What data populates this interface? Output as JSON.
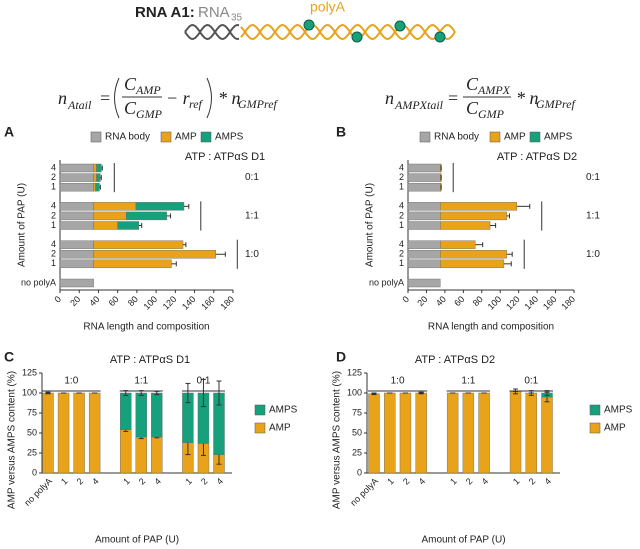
{
  "header": {
    "title": "RNA A1:",
    "rna": "RNA",
    "rna_sub": "35",
    "polya": "polyA"
  },
  "equations": [
    {
      "lhs": "n",
      "lhs_sub": "Atail",
      "eq": "=",
      "num": "C",
      "num_sub": "AMP",
      "den": "C",
      "den_sub": "GMP",
      "minus": "− r",
      "minus_sub": "ref",
      "mult": "* n",
      "mult_sub": "GMPref"
    },
    {
      "lhs": "n",
      "lhs_sub": "AMPXtail",
      "eq": "=",
      "num": "C",
      "num_sub": "AMPX",
      "den": "C",
      "den_sub": "GMP",
      "mult": "* n",
      "mult_sub": "GMPref"
    }
  ],
  "chart_data": [
    {
      "type": "barh",
      "panel": "A",
      "annotation": "ATP : ATPαS D1",
      "xlabel": "RNA length and composition",
      "ylabel": "Amount of PAP (U)",
      "categories": [
        "4",
        "2",
        "1",
        null,
        "4",
        "2",
        "1",
        null,
        "4",
        "2",
        "1",
        null,
        "no polyA"
      ],
      "groups": [
        "0:1",
        "1:1",
        "1:0"
      ],
      "series": [
        {
          "name": "RNA body",
          "color": "#a6a6a6",
          "values": [
            35,
            35,
            35,
            null,
            35,
            35,
            35,
            null,
            35,
            35,
            35,
            null,
            35
          ]
        },
        {
          "name": "AMP",
          "color": "#e8a31b",
          "values": [
            3,
            3,
            2,
            null,
            44,
            34,
            25,
            null,
            93,
            127,
            81,
            null,
            null
          ]
        },
        {
          "name": "AMPS",
          "color": "#17a07c",
          "values": [
            5,
            4,
            4,
            null,
            50,
            42,
            22,
            null,
            null,
            null,
            null,
            null,
            null
          ]
        }
      ],
      "errors": [
        1,
        1,
        1,
        null,
        5,
        4,
        3,
        null,
        3,
        10,
        5,
        null,
        null
      ],
      "xlim": [
        0,
        180
      ],
      "xticks": [
        0,
        20,
        40,
        60,
        80,
        100,
        120,
        140,
        160,
        180
      ]
    },
    {
      "type": "barh",
      "panel": "B",
      "annotation": "ATP : ATPαS D2",
      "xlabel": "RNA length and composition",
      "ylabel": "Amount of PAP (U)",
      "categories": [
        "4",
        "2",
        "1",
        null,
        "4",
        "2",
        "1",
        null,
        "4",
        "2",
        "1",
        null,
        "no polyA"
      ],
      "groups": [
        "0:1",
        "1:1",
        "1:0"
      ],
      "series": [
        {
          "name": "RNA body",
          "color": "#a6a6a6",
          "values": [
            35,
            35,
            35,
            null,
            35,
            35,
            35,
            null,
            35,
            35,
            35,
            null,
            35
          ]
        },
        {
          "name": "AMP",
          "color": "#e8a31b",
          "values": [
            1,
            1,
            1,
            null,
            83,
            72,
            54,
            null,
            38,
            72,
            69,
            null,
            null
          ]
        },
        {
          "name": "AMPS",
          "color": "#17a07c",
          "values": [
            null,
            null,
            null,
            null,
            null,
            null,
            null,
            null,
            null,
            null,
            null,
            null,
            null
          ]
        }
      ],
      "errors": [
        0,
        0,
        0,
        null,
        14,
        3,
        6,
        null,
        8,
        6,
        8,
        null,
        null
      ],
      "xlim": [
        0,
        180
      ],
      "xticks": [
        0,
        20,
        40,
        60,
        80,
        100,
        120,
        140,
        160,
        180
      ]
    },
    {
      "type": "bar",
      "panel": "C",
      "annotation": "ATP : ATPαS D1",
      "xlabel": "Amount of PAP (U)",
      "ylabel": "AMP versus AMPS content (%)",
      "categories": [
        "no polyA",
        "1",
        "2",
        "4",
        null,
        "1",
        "2",
        "4",
        null,
        "1",
        "2",
        "4"
      ],
      "groups": [
        "1:0",
        "1:1",
        "0:1"
      ],
      "series": [
        {
          "name": "AMP",
          "color": "#e8a31b",
          "values": [
            100,
            100,
            100,
            100,
            null,
            54,
            45,
            45,
            null,
            38,
            37,
            23
          ],
          "errors": [
            1,
            0,
            0,
            0,
            null,
            2,
            2,
            1,
            null,
            15,
            15,
            12
          ]
        },
        {
          "name": "AMPS",
          "color": "#17a07c",
          "values": [
            0,
            0,
            0,
            0,
            null,
            46,
            55,
            55,
            null,
            62,
            63,
            77
          ],
          "errors": [
            0,
            0,
            0,
            0,
            null,
            3,
            3,
            2,
            null,
            12,
            17,
            15
          ]
        }
      ],
      "ylim": [
        0,
        125
      ],
      "yticks": [
        0,
        25,
        50,
        75,
        100,
        125
      ]
    },
    {
      "type": "bar",
      "panel": "D",
      "annotation": "ATP : ATPαS D2",
      "xlabel": "Amount of PAP (U)",
      "ylabel": "AMP versus AMPS content (%)",
      "categories": [
        "no polyA",
        "1",
        "2",
        "4",
        null,
        "1",
        "2",
        "4",
        null,
        "1",
        "2",
        "4"
      ],
      "groups": [
        "1:0",
        "1:1",
        "0:1"
      ],
      "series": [
        {
          "name": "AMP",
          "color": "#e8a31b",
          "values": [
            99,
            100,
            100,
            100,
            null,
            100,
            100,
            100,
            null,
            102,
            100,
            95
          ],
          "errors": [
            1,
            0,
            0,
            1,
            null,
            0,
            0,
            0,
            null,
            3,
            3,
            6
          ]
        },
        {
          "name": "AMPS",
          "color": "#17a07c",
          "values": [
            0,
            0,
            0,
            0,
            null,
            0,
            0,
            0,
            null,
            0,
            0,
            5
          ],
          "errors": [
            0,
            0,
            0,
            0,
            null,
            0,
            0,
            0,
            null,
            0,
            0,
            3
          ]
        }
      ],
      "ylim": [
        0,
        125
      ],
      "yticks": [
        0,
        25,
        50,
        75,
        100,
        125
      ]
    }
  ]
}
